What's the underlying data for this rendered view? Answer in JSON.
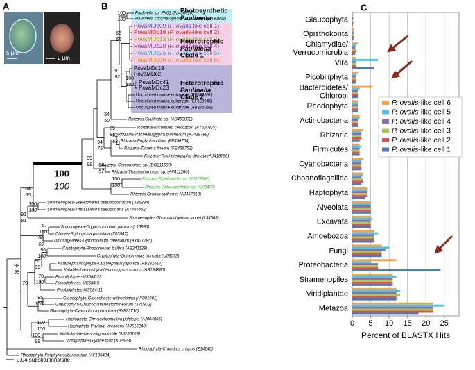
{
  "panel_a": {
    "label": "A",
    "scale_left": "5 μm",
    "scale_right": "2 μm"
  },
  "panel_b": {
    "label": "B",
    "scale": "0.04 substitutions/site",
    "clades": [
      [
        "Photosynthetic",
        "Paulinella"
      ],
      [
        "Heterotrophic",
        "Paulinella",
        "Clade 1"
      ],
      [
        "Heterotrophic",
        "Paulinella",
        "Clade 2"
      ]
    ],
    "taxa": [
      {
        "label": "Paulinella sp. FK01 (FJ456918)"
      },
      {
        "label": "Paulinella chromatophora CCAC 0185 (FX81811)"
      },
      {
        "label": "PovaMDc09 (P. ovalis-like cell 1)",
        "color": "#3b5bb5"
      },
      {
        "label": "PovaMDc16 (P. ovalis-like cell 2)",
        "color": "#e02020"
      },
      {
        "label": "PovaMDc13 (P. ovalis-like cell 3)",
        "color": "#9ab030"
      },
      {
        "label": "PovaMDc20 (P. ovalis-like cell 4)",
        "color": "#7a3d9a"
      },
      {
        "label": "PovaMDc26 (P. ovalis-like cell 5)",
        "color": "#2aa8d8"
      },
      {
        "label": "PovaMDc38 (P. ovalis-like cell 6)",
        "color": "#e88a20"
      },
      {
        "label": "PovaMDc19"
      },
      {
        "label": "PovaMDc2"
      },
      {
        "label": "PovaMDc41"
      },
      {
        "label": "PovaMDc23"
      },
      {
        "label": "Uncultured marine eukaryote (EF526891)"
      },
      {
        "label": "Uncultured marine eukaryote (EF526945)"
      },
      {
        "label": "Uncultured marine eukaryote (AB275059)"
      },
      {
        "label": "Rhizaria-Ovulinata sp. (AB453002)"
      },
      {
        "label": "Rhizaria-uncultured cercozoan (AY620307)"
      },
      {
        "label": "Rhizaria-Tracheleuglypha pulchellum (AJ418789)"
      },
      {
        "label": "Rhizaria-Euglypha ciliata (FE456754)"
      },
      {
        "label": "Rhizaria-Trinema lineare (FE456752)"
      },
      {
        "label": "Rhizaria-Tracheleuglypha dentata (AJ418790)"
      },
      {
        "label": "Rhizaria-Cercomonas sp. (DQ211598)"
      },
      {
        "label": "Rhizaria-Thaumatomonas sp. (AF411260)"
      },
      {
        "label": "Rhizaria-Bigelowiella sp. (FJ973362)",
        "color": "#3cb034"
      },
      {
        "label": "Rhizaria-Chlorarachnion sp. (U03479)",
        "color": "#3cb034"
      },
      {
        "label": "Rhizaria-Gromia oviformis (AJ457813)"
      },
      {
        "label": "Stramenopiles-Skeletonema pseudocostatum (X85394)"
      },
      {
        "label": "Stramenopiles-Thalassiosira pseudonana (AY485452)"
      },
      {
        "label": "Stramenopiles-Thraustochytrium kinnei (L34668)"
      },
      {
        "label": "Apicomplexa-Cryptosporidium parvum (L16996)"
      },
      {
        "label": "Ciliates-Stylonychia pustulata (X03947)"
      },
      {
        "label": "Dinoflagellates-Gymnodinium catenatum (AY421785)"
      },
      {
        "label": "Cryptophyta-Rhodomonas baltica (AB241128)"
      },
      {
        "label": "Cryptophyta-Goniomonas truncata (U03072)"
      },
      {
        "label": "Katablepharidophyta-Katablepharis japonica (AB231617)"
      },
      {
        "label": "Katablepharidophyta-Leucocryptos marina (AB194980)"
      },
      {
        "label": "Picobiliphytes-MS584-22"
      },
      {
        "label": "Picobiliphytes-MS584-5"
      },
      {
        "label": "Picobiliphytes-MS584-11"
      },
      {
        "label": "Glaucophyta-Gloeochaete wittrockiana (AY801901)"
      },
      {
        "label": "Glaucophyta-Glaucocystisnostochinearum (X70803)"
      },
      {
        "label": "Glaucophyta-Cyanophora paradoxa (AY823716)"
      },
      {
        "label": "Haptophyta-Chrysochromulina polylepis (AJ004866)"
      },
      {
        "label": "Haptophyta-Pavlova virescens (AJ515248)"
      },
      {
        "label": "Viridiplantae-Mesostigma viride (AJ250109)"
      },
      {
        "label": "Viridiplantae-Glycine max (X02623)"
      },
      {
        "label": "Rhodophyta-Chondrus crispus (Z14140)"
      },
      {
        "label": "Rhodophyta-Porphyra suborbiculata (AF136424)"
      }
    ],
    "supports": [
      [
        "100",
        "100"
      ],
      [
        "65",
        "65"
      ],
      [
        "91",
        "92"
      ],
      [
        "100",
        "100"
      ],
      [
        "54",
        "60"
      ],
      [
        "85",
        "85"
      ],
      [
        "62",
        "68"
      ],
      [
        "94",
        "75"
      ],
      [
        "99",
        "99"
      ],
      [
        "64",
        "57"
      ],
      [
        "100",
        "100"
      ],
      [
        "100",
        "100"
      ],
      [
        "64",
        "56"
      ],
      [
        "100",
        "100"
      ],
      [
        "91",
        "81"
      ],
      [
        "67",
        "100"
      ],
      [
        "100",
        "69"
      ],
      [
        "95",
        "100"
      ],
      [
        "86",
        "99"
      ],
      [
        "98",
        "98"
      ],
      [
        "79",
        "-"
      ],
      [
        "78",
        "100"
      ],
      [
        "85",
        "100"
      ],
      [
        "100",
        "100"
      ],
      [
        "100",
        "99"
      ]
    ]
  },
  "chart_data": {
    "type": "bar",
    "horizontal": true,
    "label": "C",
    "xlabel": "Percent of BLASTX Hits",
    "categories": [
      "Glaucophyta",
      "Opisthokonta",
      "Chlamydiae/Verrucomicrobia",
      "Vira",
      "Picobiliphyta",
      "Bacteroidetes/Chlorobi",
      "Rhodophyta",
      "Actinobacteria",
      "Rhizaria",
      "Firmicutes",
      "Cyanobacteria",
      "Choanoflagellida",
      "Haptophyta",
      "Alveolata",
      "Excavata",
      "Amoebozoa",
      "Fungi",
      "Proteobacteria",
      "Stramenopiles",
      "Viridiplantae",
      "Metazoa"
    ],
    "series": [
      {
        "name": "P. ovalis-like cell 6",
        "color": "#f5a04a",
        "values": [
          0.3,
          0.5,
          1.5,
          1,
          1.5,
          5.5,
          1.5,
          2,
          3,
          2,
          3,
          3,
          4,
          5,
          5,
          6,
          8,
          12,
          11,
          12,
          22
        ]
      },
      {
        "name": "P. ovalis-like cell 5",
        "color": "#4fc3e0",
        "values": [
          0.2,
          0.3,
          1,
          7,
          1,
          2,
          1.5,
          2,
          2.5,
          2.5,
          2.5,
          3,
          4,
          5,
          5.5,
          7,
          10,
          5,
          12,
          13,
          25
        ]
      },
      {
        "name": "P. ovalis-like cell 4",
        "color": "#8a6bb5",
        "values": [
          0.3,
          0.4,
          0.8,
          1,
          1,
          1.5,
          1.5,
          1.5,
          2.5,
          2,
          2.5,
          2.5,
          4,
          5,
          5,
          6,
          9,
          7,
          11,
          12,
          22
        ]
      },
      {
        "name": "P. ovalis-like cell 3",
        "color": "#a5c85a",
        "values": [
          0.2,
          0.3,
          1,
          1,
          1,
          1.5,
          1.5,
          1.5,
          2.5,
          2,
          2.5,
          3,
          4,
          5,
          5,
          6,
          8,
          7,
          11,
          13,
          22
        ]
      },
      {
        "name": "P. ovalis-like cell 2",
        "color": "#d9534f",
        "values": [
          0.3,
          0.4,
          1,
          1,
          1,
          1.5,
          1.5,
          1.5,
          2.5,
          2,
          2.5,
          3,
          4,
          5,
          5,
          6,
          8,
          7,
          11,
          12,
          22
        ]
      },
      {
        "name": "P. ovalis-like cell 1",
        "color": "#4a7ab8",
        "values": [
          0.2,
          0.3,
          0.8,
          6,
          1,
          1.5,
          1.5,
          1.5,
          2,
          2,
          2.5,
          2.5,
          3.5,
          5,
          5,
          6,
          8,
          24,
          11,
          12,
          18
        ]
      }
    ],
    "xlim": [
      0,
      29
    ],
    "xticks": [
      0,
      5,
      10,
      15,
      20,
      25
    ],
    "grid": true
  }
}
